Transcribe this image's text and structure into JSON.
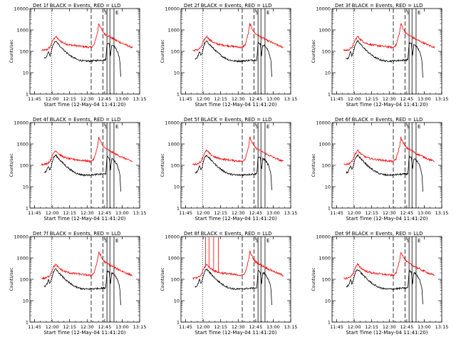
{
  "chart_data": {
    "type": "line",
    "yscale": "log",
    "ylim": [
      1,
      10000
    ],
    "xlim_minutes_after": [
      11,
      15
    ],
    "x_ticks": [
      "11:45",
      "12:00",
      "12:15",
      "12:30",
      "12:45",
      "13:00",
      "13:15"
    ],
    "y_ticks": [
      "1",
      "10",
      "100",
      "1000",
      "10000"
    ],
    "ylabel": "Counts/sec",
    "xlabel": "Start Time (12-May-04 11:41:20)",
    "series_names": [
      "Events",
      "LLD"
    ],
    "series_colors": [
      "#000000",
      "#ff0000"
    ],
    "markers": [
      {
        "label": "",
        "style": "dotted",
        "time": "11:59:30"
      },
      {
        "label": "",
        "style": "dashed",
        "time": "12:33:30"
      },
      {
        "label": "S",
        "style": "dashed",
        "time": "12:43:30"
      },
      {
        "label": "",
        "style": "solid",
        "time": "12:47:00"
      },
      {
        "label": "",
        "style": "solid",
        "time": "12:49:30"
      },
      {
        "label": "E",
        "style": "solid",
        "time": "12:53:00"
      }
    ],
    "panels": [
      {
        "title": "Det 1f BLACK = Events, RED = LLD",
        "det": 1
      },
      {
        "title": "Det 2f BLACK = Events, RED = LLD",
        "det": 2
      },
      {
        "title": "Det 3f BLACK = Events, RED = LLD",
        "det": 3
      },
      {
        "title": "Det 4f BLACK = Events, RED = LLD",
        "det": 4
      },
      {
        "title": "Det 5f BLACK = Events, RED = LLD",
        "det": 5
      },
      {
        "title": "Det 6f BLACK = Events, RED = LLD",
        "det": 6
      },
      {
        "title": "Det 7f BLACK = Events, RED = LLD",
        "det": 7
      },
      {
        "title": "Det 8f BLACK = Events, RED = LLD",
        "det": 8
      },
      {
        "title": "Det 9f BLACK = Events, RED = LLD",
        "det": 9
      }
    ],
    "red_profile": [
      [
        "11:51",
        110
      ],
      [
        "11:55",
        115
      ],
      [
        "11:58",
        150
      ],
      [
        "12:01",
        350
      ],
      [
        "12:03",
        500
      ],
      [
        "12:06",
        330
      ],
      [
        "12:10",
        240
      ],
      [
        "12:15",
        200
      ],
      [
        "12:20",
        185
      ],
      [
        "12:25",
        170
      ],
      [
        "12:30",
        160
      ],
      [
        "12:33",
        150
      ],
      [
        "12:36",
        200
      ],
      [
        "12:39",
        800
      ],
      [
        "12:40",
        2000
      ],
      [
        "12:41",
        1500
      ],
      [
        "12:43",
        900
      ],
      [
        "12:45",
        650
      ],
      [
        "12:50",
        450
      ],
      [
        "12:55",
        320
      ],
      [
        "13:00",
        240
      ],
      [
        "13:05",
        180
      ],
      [
        "13:09",
        150
      ]
    ],
    "black_profile": [
      [
        "11:53",
        45
      ],
      [
        "11:55",
        50
      ],
      [
        "11:57",
        100
      ],
      [
        "11:58",
        60
      ],
      [
        "11:59",
        80
      ],
      [
        "12:01",
        220
      ],
      [
        "12:03",
        300
      ],
      [
        "12:07",
        170
      ],
      [
        "12:12",
        90
      ],
      [
        "12:17",
        55
      ],
      [
        "12:22",
        40
      ],
      [
        "12:27",
        35
      ],
      [
        "12:32",
        35
      ],
      [
        "12:46",
        40
      ],
      [
        "12:47",
        250
      ],
      [
        "12:49",
        220
      ],
      [
        "12:50",
        60
      ],
      [
        "12:51",
        200
      ],
      [
        "12:53",
        180
      ],
      [
        "12:56",
        100
      ],
      [
        "12:58",
        40
      ],
      [
        "12:59",
        4
      ]
    ]
  }
}
